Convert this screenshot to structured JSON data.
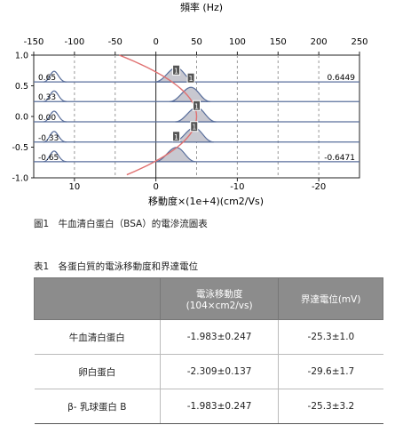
{
  "chart_data": {
    "type": "line",
    "title": "",
    "xlabel_top": "頻率 (Hz)",
    "xlabel_bottom": "移動度×(1e+4)(cm2/Vs)",
    "ylabel": "",
    "xlim_top": [
      -150,
      250
    ],
    "xticks_top": [
      "-150",
      "-100",
      "-50",
      "0",
      "50",
      "100",
      "150",
      "200",
      "250"
    ],
    "xticks_bottom": [
      "10",
      "0",
      "-10",
      "-20"
    ],
    "yticks": [
      "1.0",
      "0.5",
      "0.0",
      "-0.5",
      "-1.0"
    ],
    "ylim": [
      -1.0,
      1.0
    ],
    "gridlines_x": [
      -100,
      -50,
      0,
      50,
      100,
      150,
      200
    ],
    "series": [
      {
        "offset": 0.65,
        "left_label": "0.65",
        "right_label": "0.6449"
      },
      {
        "offset": 0.33,
        "left_label": "0.33",
        "right_label": ""
      },
      {
        "offset": 0.0,
        "left_label": "0.00",
        "right_label": ""
      },
      {
        "offset": -0.33,
        "left_label": "-0.33",
        "right_label": ""
      },
      {
        "offset": -0.65,
        "left_label": "-0.65",
        "right_label": "-0.6471"
      }
    ],
    "markers": [
      {
        "label": "1",
        "x": 25,
        "y": 0.75
      },
      {
        "label": "1",
        "x": 43,
        "y": 0.62
      },
      {
        "label": "1",
        "x": 50,
        "y": 0.17
      },
      {
        "label": "1",
        "x": 47,
        "y": -0.17
      },
      {
        "label": "1",
        "x": 25,
        "y": -0.33
      }
    ]
  },
  "figure_caption": "圖1　牛血清白蛋白（BSA）的電滲流圖表",
  "table": {
    "caption": "表1　各蛋白質的電泳移動度和界達電位",
    "headers": [
      "",
      "電泳移動度\n(104×cm2/vs)",
      "界達電位(mV)"
    ],
    "rows": [
      [
        "牛血清白蛋白",
        "-1.983±0.247",
        "-25.3±1.0"
      ],
      [
        "卵白蛋白",
        "-2.309±0.137",
        "-29.6±1.7"
      ],
      [
        "β- 乳球蛋白 B",
        "-1.983±0.247",
        "-25.3±3.2"
      ]
    ]
  }
}
